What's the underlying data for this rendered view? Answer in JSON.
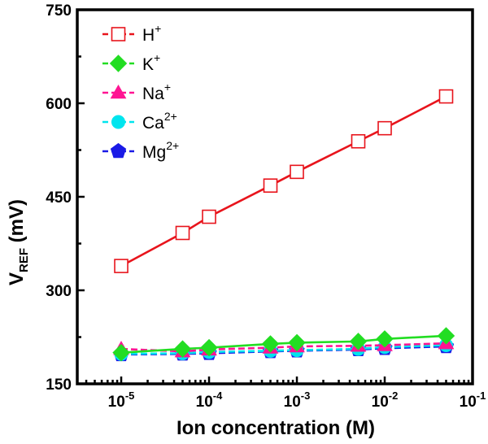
{
  "chart_data": {
    "type": "line",
    "xlabel": "Ion concentration (M)",
    "ylabel": "V",
    "ylabel_subscript": "REF",
    "ylabel_unit": " (mV)",
    "x_scale": "log",
    "xlim": [
      3.16e-06,
      0.1
    ],
    "ylim": [
      150,
      750
    ],
    "y_ticks": [
      150,
      300,
      450,
      600,
      750
    ],
    "y_tick_labels": [
      "150",
      "300",
      "450",
      "600",
      "750"
    ],
    "x_ticks": [
      1e-05,
      0.0001,
      0.001,
      0.01,
      0.1
    ],
    "x_tick_base": "10",
    "x_tick_exponents": [
      "-5",
      "-4",
      "-3",
      "-2",
      "-1"
    ],
    "legend_position": "top-left",
    "x": [
      1e-05,
      5e-05,
      0.0001,
      0.0005,
      0.001,
      0.005,
      0.01,
      0.05
    ],
    "series": [
      {
        "name": "H",
        "name_sup": "+",
        "color": "#e8141c",
        "marker": "open-square",
        "line": "solid",
        "values": [
          339,
          392,
          418,
          468,
          490,
          539,
          560,
          611
        ]
      },
      {
        "name": "K",
        "name_sup": "+",
        "color": "#22dd22",
        "marker": "diamond",
        "line": "solid",
        "values": [
          200,
          206,
          208,
          214,
          216,
          218,
          222,
          227
        ]
      },
      {
        "name": "Na",
        "name_sup": "+",
        "color": "#ff1493",
        "marker": "triangle",
        "line": "dashed",
        "values": [
          206,
          202,
          205,
          208,
          210,
          211,
          212,
          215
        ]
      },
      {
        "name": "Ca",
        "name_sup": "2+",
        "color": "#00e5ee",
        "marker": "circle",
        "line": "dashed",
        "values": [
          198,
          199,
          201,
          203,
          204,
          206,
          209,
          212
        ]
      },
      {
        "name": "Mg",
        "name_sup": "2+",
        "color": "#1a1ae6",
        "marker": "pentagon",
        "line": "dashed",
        "values": [
          197,
          198,
          199,
          202,
          203,
          205,
          207,
          210
        ]
      }
    ]
  }
}
